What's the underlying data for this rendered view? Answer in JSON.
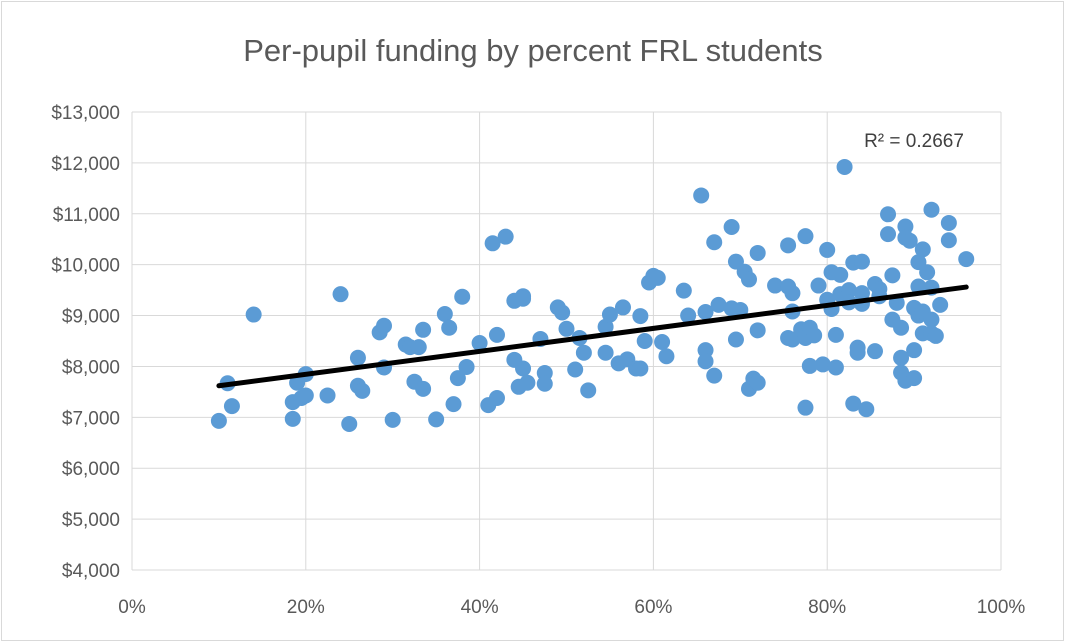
{
  "chart_data": {
    "type": "scatter",
    "title": "Per-pupil funding by percent FRL students",
    "xlabel": "",
    "ylabel": "",
    "xlim": [
      0,
      1
    ],
    "ylim": [
      4000,
      13000
    ],
    "x_ticks": [
      "0%",
      "20%",
      "40%",
      "60%",
      "80%",
      "100%"
    ],
    "y_ticks": [
      "$4,000",
      "$5,000",
      "$6,000",
      "$7,000",
      "$8,000",
      "$9,000",
      "$10,000",
      "$11,000",
      "$12,000",
      "$13,000"
    ],
    "grid": true,
    "marker_color": "#5b9bd5",
    "trendline": {
      "type": "linear",
      "x": [
        0.1,
        0.96
      ],
      "y": [
        7620,
        9560
      ],
      "color": "#000000"
    },
    "r_squared_label": "R² = 0.2667",
    "series": [
      {
        "points": [
          [
            0.1,
            6930
          ],
          [
            0.11,
            7670
          ],
          [
            0.115,
            7220
          ],
          [
            0.14,
            9020
          ],
          [
            0.185,
            6970
          ],
          [
            0.185,
            7300
          ],
          [
            0.19,
            7680
          ],
          [
            0.195,
            7380
          ],
          [
            0.2,
            7430
          ],
          [
            0.2,
            7850
          ],
          [
            0.225,
            7430
          ],
          [
            0.24,
            9420
          ],
          [
            0.25,
            6870
          ],
          [
            0.26,
            8170
          ],
          [
            0.26,
            7620
          ],
          [
            0.265,
            7520
          ],
          [
            0.285,
            8670
          ],
          [
            0.29,
            8800
          ],
          [
            0.29,
            7980
          ],
          [
            0.3,
            6950
          ],
          [
            0.315,
            8430
          ],
          [
            0.32,
            8380
          ],
          [
            0.325,
            7700
          ],
          [
            0.33,
            8380
          ],
          [
            0.335,
            8720
          ],
          [
            0.335,
            7560
          ],
          [
            0.35,
            6960
          ],
          [
            0.36,
            9030
          ],
          [
            0.365,
            8760
          ],
          [
            0.37,
            7260
          ],
          [
            0.375,
            7770
          ],
          [
            0.38,
            9370
          ],
          [
            0.385,
            7990
          ],
          [
            0.4,
            8460
          ],
          [
            0.41,
            7240
          ],
          [
            0.415,
            10420
          ],
          [
            0.42,
            8620
          ],
          [
            0.42,
            7380
          ],
          [
            0.43,
            10550
          ],
          [
            0.44,
            9290
          ],
          [
            0.44,
            8130
          ],
          [
            0.445,
            7600
          ],
          [
            0.45,
            9380
          ],
          [
            0.45,
            9330
          ],
          [
            0.45,
            7960
          ],
          [
            0.455,
            7680
          ],
          [
            0.47,
            8540
          ],
          [
            0.475,
            7870
          ],
          [
            0.475,
            7660
          ],
          [
            0.49,
            9160
          ],
          [
            0.495,
            9060
          ],
          [
            0.5,
            8740
          ],
          [
            0.51,
            7940
          ],
          [
            0.515,
            8560
          ],
          [
            0.52,
            8270
          ],
          [
            0.525,
            7530
          ],
          [
            0.545,
            8780
          ],
          [
            0.545,
            8270
          ],
          [
            0.55,
            9020
          ],
          [
            0.56,
            8060
          ],
          [
            0.565,
            9160
          ],
          [
            0.57,
            8140
          ],
          [
            0.58,
            7960
          ],
          [
            0.585,
            8990
          ],
          [
            0.585,
            7960
          ],
          [
            0.59,
            8500
          ],
          [
            0.595,
            9650
          ],
          [
            0.6,
            9780
          ],
          [
            0.605,
            9740
          ],
          [
            0.61,
            8480
          ],
          [
            0.615,
            8200
          ],
          [
            0.635,
            9490
          ],
          [
            0.64,
            9000
          ],
          [
            0.655,
            11360
          ],
          [
            0.66,
            9070
          ],
          [
            0.66,
            8320
          ],
          [
            0.66,
            8100
          ],
          [
            0.67,
            10440
          ],
          [
            0.67,
            7820
          ],
          [
            0.675,
            9210
          ],
          [
            0.69,
            10740
          ],
          [
            0.69,
            9140
          ],
          [
            0.695,
            10060
          ],
          [
            0.695,
            8530
          ],
          [
            0.7,
            9110
          ],
          [
            0.705,
            9860
          ],
          [
            0.71,
            9710
          ],
          [
            0.71,
            7560
          ],
          [
            0.715,
            7760
          ],
          [
            0.72,
            10230
          ],
          [
            0.72,
            8710
          ],
          [
            0.72,
            7680
          ],
          [
            0.74,
            9590
          ],
          [
            0.755,
            10380
          ],
          [
            0.755,
            9570
          ],
          [
            0.755,
            8560
          ],
          [
            0.76,
            9440
          ],
          [
            0.76,
            9080
          ],
          [
            0.76,
            8530
          ],
          [
            0.77,
            8730
          ],
          [
            0.775,
            10560
          ],
          [
            0.775,
            8560
          ],
          [
            0.775,
            7190
          ],
          [
            0.78,
            8760
          ],
          [
            0.78,
            8010
          ],
          [
            0.785,
            8610
          ],
          [
            0.79,
            9590
          ],
          [
            0.795,
            8040
          ],
          [
            0.8,
            9310
          ],
          [
            0.8,
            10290
          ],
          [
            0.805,
            9850
          ],
          [
            0.805,
            9130
          ],
          [
            0.81,
            8620
          ],
          [
            0.81,
            7980
          ],
          [
            0.815,
            9420
          ],
          [
            0.815,
            9800
          ],
          [
            0.82,
            11920
          ],
          [
            0.825,
            9500
          ],
          [
            0.825,
            9260
          ],
          [
            0.83,
            7270
          ],
          [
            0.83,
            10040
          ],
          [
            0.835,
            8370
          ],
          [
            0.835,
            8270
          ],
          [
            0.84,
            10060
          ],
          [
            0.84,
            9440
          ],
          [
            0.84,
            9230
          ],
          [
            0.845,
            7160
          ],
          [
            0.855,
            9620
          ],
          [
            0.855,
            8300
          ],
          [
            0.86,
            9520
          ],
          [
            0.86,
            9380
          ],
          [
            0.87,
            10990
          ],
          [
            0.87,
            10600
          ],
          [
            0.875,
            9790
          ],
          [
            0.875,
            8920
          ],
          [
            0.88,
            9250
          ],
          [
            0.885,
            8760
          ],
          [
            0.885,
            8170
          ],
          [
            0.885,
            7880
          ],
          [
            0.89,
            10750
          ],
          [
            0.89,
            10530
          ],
          [
            0.89,
            7720
          ],
          [
            0.895,
            10470
          ],
          [
            0.9,
            9150
          ],
          [
            0.9,
            8320
          ],
          [
            0.9,
            7770
          ],
          [
            0.905,
            9570
          ],
          [
            0.905,
            9000
          ],
          [
            0.905,
            10050
          ],
          [
            0.91,
            10300
          ],
          [
            0.91,
            9080
          ],
          [
            0.91,
            8650
          ],
          [
            0.915,
            9850
          ],
          [
            0.92,
            11080
          ],
          [
            0.92,
            9550
          ],
          [
            0.92,
            8920
          ],
          [
            0.92,
            8650
          ],
          [
            0.925,
            8600
          ],
          [
            0.93,
            9210
          ],
          [
            0.94,
            10820
          ],
          [
            0.94,
            10480
          ],
          [
            0.96,
            10110
          ]
        ]
      }
    ]
  }
}
